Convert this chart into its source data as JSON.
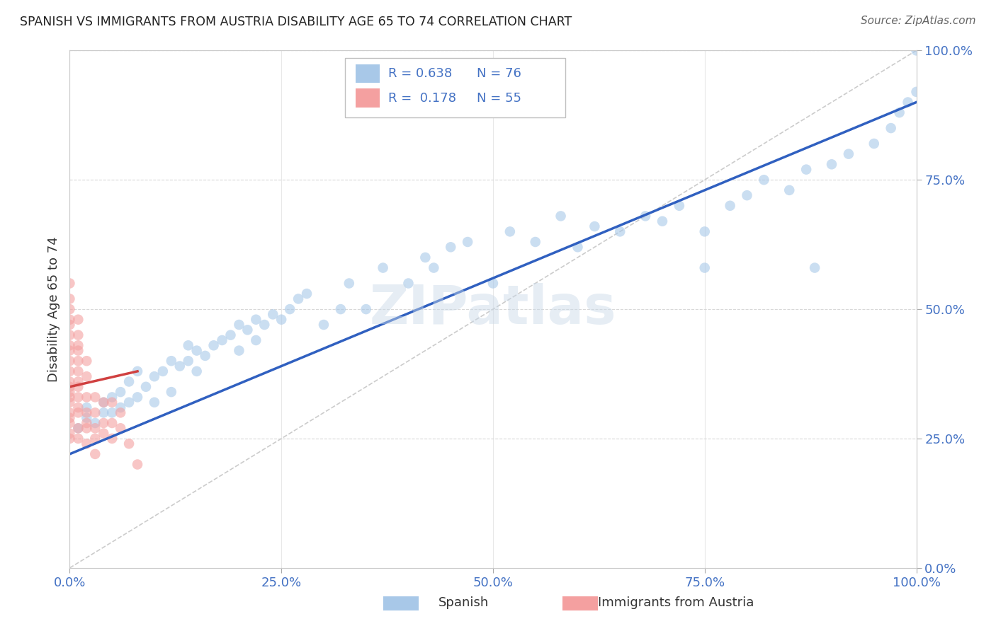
{
  "title": "SPANISH VS IMMIGRANTS FROM AUSTRIA DISABILITY AGE 65 TO 74 CORRELATION CHART",
  "source_text": "Source: ZipAtlas.com",
  "ylabel": "Disability Age 65 to 74",
  "xticklabels": [
    "0.0%",
    "25.0%",
    "50.0%",
    "75.0%",
    "100.0%"
  ],
  "yticklabels": [
    "0.0%",
    "25.0%",
    "50.0%",
    "75.0%",
    "100.0%"
  ],
  "spanish_R": 0.638,
  "spanish_N": 76,
  "austria_R": 0.178,
  "austria_N": 55,
  "spanish_color": "#a8c8e8",
  "austria_color": "#f4a0a0",
  "spanish_line_color": "#3060c0",
  "austria_line_color": "#d04040",
  "legend_label_spanish": "Spanish",
  "legend_label_austria": "Immigrants from Austria",
  "watermark": "ZIPatlas",
  "figsize": [
    14.06,
    8.92
  ],
  "dpi": 100,
  "xlim": [
    0,
    1
  ],
  "ylim": [
    0,
    1
  ],
  "spanish_x": [
    0.01,
    0.02,
    0.02,
    0.03,
    0.04,
    0.04,
    0.05,
    0.05,
    0.06,
    0.06,
    0.07,
    0.07,
    0.08,
    0.08,
    0.09,
    0.1,
    0.1,
    0.11,
    0.12,
    0.12,
    0.13,
    0.14,
    0.14,
    0.15,
    0.15,
    0.16,
    0.17,
    0.18,
    0.19,
    0.2,
    0.2,
    0.21,
    0.22,
    0.22,
    0.23,
    0.24,
    0.25,
    0.26,
    0.27,
    0.28,
    0.3,
    0.32,
    0.33,
    0.35,
    0.37,
    0.4,
    0.42,
    0.43,
    0.45,
    0.47,
    0.5,
    0.52,
    0.55,
    0.58,
    0.6,
    0.62,
    0.65,
    0.68,
    0.7,
    0.72,
    0.75,
    0.78,
    0.8,
    0.82,
    0.85,
    0.87,
    0.88,
    0.9,
    0.92,
    0.95,
    0.97,
    0.98,
    0.99,
    1.0,
    1.0,
    0.75
  ],
  "spanish_y": [
    0.27,
    0.29,
    0.31,
    0.28,
    0.3,
    0.32,
    0.3,
    0.33,
    0.31,
    0.34,
    0.32,
    0.36,
    0.33,
    0.38,
    0.35,
    0.32,
    0.37,
    0.38,
    0.34,
    0.4,
    0.39,
    0.4,
    0.43,
    0.38,
    0.42,
    0.41,
    0.43,
    0.44,
    0.45,
    0.42,
    0.47,
    0.46,
    0.48,
    0.44,
    0.47,
    0.49,
    0.48,
    0.5,
    0.52,
    0.53,
    0.47,
    0.5,
    0.55,
    0.5,
    0.58,
    0.55,
    0.6,
    0.58,
    0.62,
    0.63,
    0.55,
    0.65,
    0.63,
    0.68,
    0.62,
    0.66,
    0.65,
    0.68,
    0.67,
    0.7,
    0.65,
    0.7,
    0.72,
    0.75,
    0.73,
    0.77,
    0.58,
    0.78,
    0.8,
    0.82,
    0.85,
    0.88,
    0.9,
    0.92,
    1.0,
    0.58
  ],
  "austria_x": [
    0.0,
    0.0,
    0.0,
    0.0,
    0.0,
    0.0,
    0.0,
    0.0,
    0.0,
    0.0,
    0.0,
    0.0,
    0.0,
    0.0,
    0.0,
    0.0,
    0.0,
    0.0,
    0.0,
    0.0,
    0.01,
    0.01,
    0.01,
    0.01,
    0.01,
    0.01,
    0.01,
    0.01,
    0.01,
    0.01,
    0.01,
    0.01,
    0.01,
    0.02,
    0.02,
    0.02,
    0.02,
    0.02,
    0.02,
    0.02,
    0.03,
    0.03,
    0.03,
    0.03,
    0.03,
    0.04,
    0.04,
    0.04,
    0.05,
    0.05,
    0.05,
    0.06,
    0.06,
    0.07,
    0.08
  ],
  "austria_y": [
    0.32,
    0.35,
    0.38,
    0.42,
    0.45,
    0.48,
    0.5,
    0.3,
    0.28,
    0.33,
    0.36,
    0.4,
    0.43,
    0.47,
    0.52,
    0.55,
    0.25,
    0.29,
    0.34,
    0.26,
    0.3,
    0.33,
    0.36,
    0.4,
    0.43,
    0.45,
    0.48,
    0.27,
    0.31,
    0.35,
    0.38,
    0.42,
    0.25,
    0.3,
    0.33,
    0.37,
    0.4,
    0.27,
    0.24,
    0.28,
    0.3,
    0.33,
    0.27,
    0.25,
    0.22,
    0.28,
    0.32,
    0.26,
    0.28,
    0.32,
    0.25,
    0.27,
    0.3,
    0.24,
    0.2
  ]
}
